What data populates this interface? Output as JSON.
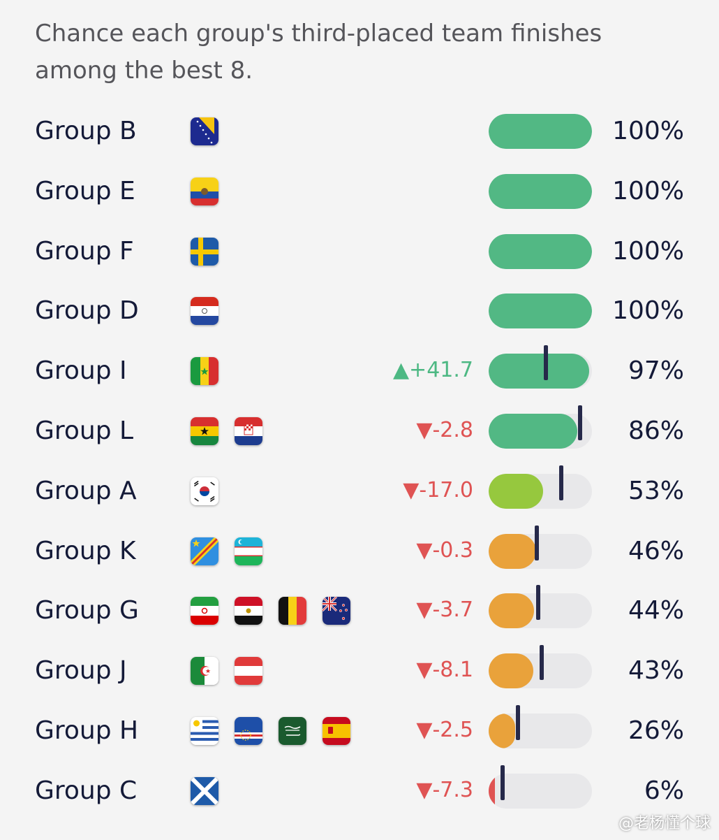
{
  "colors": {
    "full": "#52b884",
    "high": "#52b884",
    "mid": "#96c83e",
    "low": "#e9a23b",
    "minimal": "#df5353",
    "track": "#e8e8ea",
    "marker": "#26294a",
    "up": "#4db883",
    "down": "#df5353"
  },
  "chart_data": {
    "type": "bar",
    "title": "Chance each group's third-placed team finishes among the best 8.",
    "categories": [
      "Group B",
      "Group E",
      "Group F",
      "Group D",
      "Group I",
      "Group L",
      "Group A",
      "Group K",
      "Group G",
      "Group J",
      "Group H",
      "Group C"
    ],
    "values": [
      100,
      100,
      100,
      100,
      97,
      86,
      53,
      46,
      44,
      43,
      26,
      6
    ],
    "value_labels": [
      "100%",
      "100%",
      "100%",
      "100%",
      "97%",
      "86%",
      "53%",
      "46%",
      "44%",
      "43%",
      "26%",
      "6%"
    ],
    "deltas": [
      null,
      null,
      null,
      null,
      41.7,
      -2.8,
      -17.0,
      -0.3,
      -3.7,
      -8.1,
      -2.5,
      -7.3
    ],
    "delta_labels": [
      "",
      "",
      "",
      "",
      "▲+41.7",
      "▼-2.8",
      "▼-17.0",
      "▼-0.3",
      "▼-3.7",
      "▼-8.1",
      "▼-2.5",
      "▼-7.3"
    ],
    "xlim": [
      0,
      100
    ],
    "flags": [
      [
        "bosnia"
      ],
      [
        "ecuador"
      ],
      [
        "sweden"
      ],
      [
        "paraguay"
      ],
      [
        "senegal"
      ],
      [
        "ghana",
        "croatia"
      ],
      [
        "south-korea"
      ],
      [
        "dr-congo",
        "uzbekistan"
      ],
      [
        "iran",
        "egypt",
        "belgium",
        "new-zealand"
      ],
      [
        "algeria",
        "austria"
      ],
      [
        "uruguay",
        "cape-verde",
        "saudi-arabia",
        "spain"
      ],
      [
        "scotland"
      ]
    ]
  },
  "watermark": "@老杨懂个球"
}
